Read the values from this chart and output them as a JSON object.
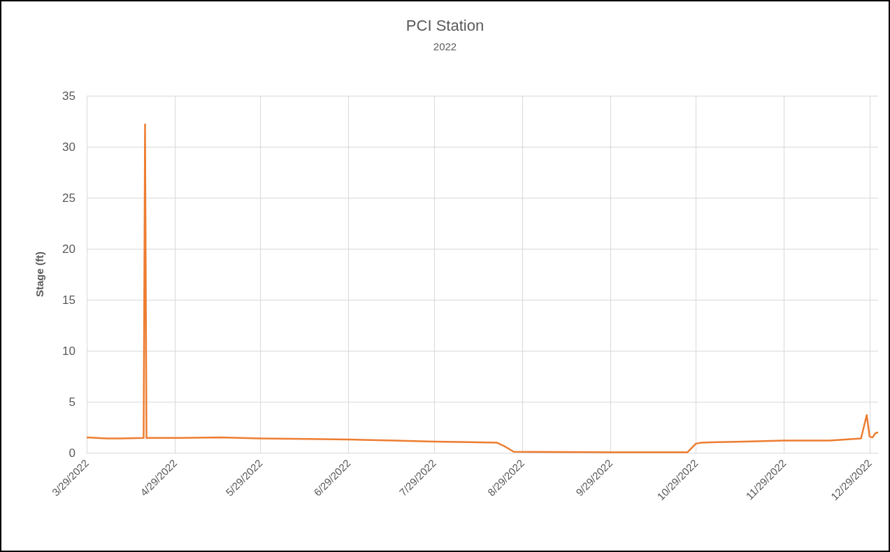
{
  "chart_data": {
    "type": "line",
    "title": "PCI Station",
    "subtitle": "2022",
    "ylabel": "Stage (ft)",
    "x": [
      "2022-03-29",
      "2022-04-05",
      "2022-04-10",
      "2022-04-18",
      "2022-04-18T12:00",
      "2022-04-19",
      "2022-05-01",
      "2022-05-15",
      "2022-05-29",
      "2022-06-15",
      "2022-06-29",
      "2022-07-15",
      "2022-07-29",
      "2022-08-10",
      "2022-08-20",
      "2022-08-23",
      "2022-08-26",
      "2022-09-29",
      "2022-10-26",
      "2022-10-29",
      "2022-10-31",
      "2022-11-15",
      "2022-11-29",
      "2022-12-15",
      "2022-12-26",
      "2022-12-28",
      "2022-12-29",
      "2022-12-30",
      "2022-12-31",
      "2023-01-01"
    ],
    "series": [
      {
        "color": "#ed7d31",
        "values": [
          1.5,
          1.4,
          1.4,
          1.45,
          32.2,
          1.45,
          1.45,
          1.5,
          1.4,
          1.35,
          1.3,
          1.2,
          1.1,
          1.05,
          1.0,
          0.6,
          0.1,
          0.05,
          0.05,
          0.9,
          1.0,
          1.1,
          1.2,
          1.2,
          1.4,
          3.7,
          1.6,
          1.5,
          1.9,
          2.0
        ]
      }
    ],
    "xlim": [
      "2022-03-29",
      "2023-01-01"
    ],
    "xticks": [
      {
        "value": "2022-03-29",
        "label": "3/29/2022"
      },
      {
        "value": "2022-04-29",
        "label": "4/29/2022"
      },
      {
        "value": "2022-05-29",
        "label": "5/29/2022"
      },
      {
        "value": "2022-06-29",
        "label": "6/29/2022"
      },
      {
        "value": "2022-07-29",
        "label": "7/29/2022"
      },
      {
        "value": "2022-08-29",
        "label": "8/29/2022"
      },
      {
        "value": "2022-09-29",
        "label": "9/29/2022"
      },
      {
        "value": "2022-10-29",
        "label": "10/29/2022"
      },
      {
        "value": "2022-11-29",
        "label": "11/29/2022"
      },
      {
        "value": "2022-12-29",
        "label": "12/29/2022"
      }
    ],
    "ylim": [
      0,
      35
    ],
    "yticks": [
      0,
      5,
      10,
      15,
      20,
      25,
      30,
      35
    ],
    "grid": true,
    "marker": "none",
    "line_style": "solid"
  }
}
